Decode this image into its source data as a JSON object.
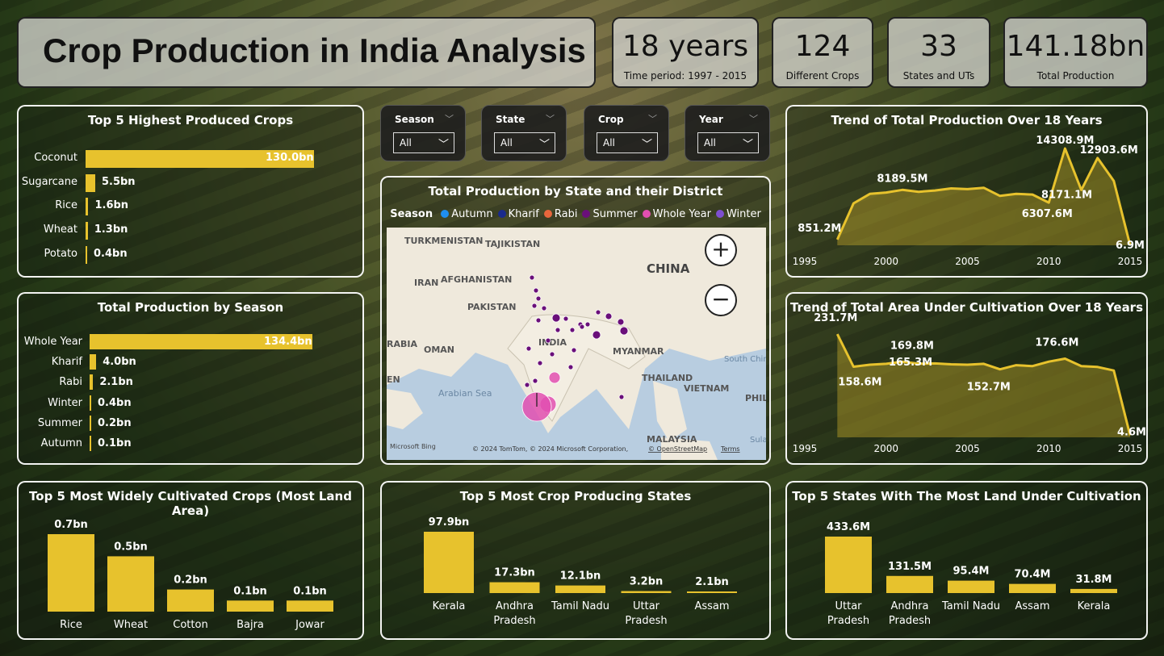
{
  "header": {
    "title": "Crop Production in India Analysis",
    "kpis": [
      {
        "value": "18 years",
        "label": "Time period: 1997 - 2015"
      },
      {
        "value": "124",
        "label": "Different Crops"
      },
      {
        "value": "33",
        "label": "States and UTs"
      },
      {
        "value": "141.18bn",
        "label": "Total Production"
      }
    ]
  },
  "filters": [
    {
      "label": "Season",
      "value": "All"
    },
    {
      "label": "State",
      "value": "All"
    },
    {
      "label": "Crop",
      "value": "All"
    },
    {
      "label": "Year",
      "value": "All"
    }
  ],
  "map_panel": {
    "title": "Total Production by State and their District",
    "legend_title": "Season",
    "legend": [
      {
        "name": "Autumn",
        "color": "#1f8ff0"
      },
      {
        "name": "Kharif",
        "color": "#1a2a8c"
      },
      {
        "name": "Rabi",
        "color": "#e8663c"
      },
      {
        "name": "Summer",
        "color": "#6a0f7a"
      },
      {
        "name": "Whole Year",
        "color": "#e24fb0"
      },
      {
        "name": "Winter",
        "color": "#7e4fd0"
      }
    ],
    "labels": {
      "turkmenistan": "TURKMENISTAN",
      "tajikistan": "TAJIKISTAN",
      "china": "CHINA",
      "iran": "IRAN",
      "afghanistan": "AFGHANISTAN",
      "pakistan": "PAKISTAN",
      "india": "INDIA",
      "arabia": "RABIA",
      "oman": "OMAN",
      "myanmar": "MYANMAR",
      "south_china_sea": "South China Sea",
      "thailand": "THAILAND",
      "vietnam": "VIETNAM",
      "arabian_sea": "Arabian Sea",
      "yemen": "EN",
      "phil": "PHIL",
      "malaysia": "MALAYSIA",
      "sula": "Sula",
      "bing": "Microsoft Bing",
      "copyright": "© 2024 TomTom, © 2024 Microsoft Corporation,",
      "osm": "© OpenStreetMap",
      "terms": "Terms"
    }
  },
  "chart_data": [
    {
      "type": "bar",
      "orientation": "horizontal",
      "title": "Top 5 Highest Produced Crops",
      "categories": [
        "Coconut",
        "Sugarcane",
        "Rice",
        "Wheat",
        "Potato"
      ],
      "values": [
        130.0,
        5.5,
        1.6,
        1.3,
        0.4
      ],
      "labels": [
        "130.0bn",
        "5.5bn",
        "1.6bn",
        "1.3bn",
        "0.4bn"
      ],
      "unit": "bn"
    },
    {
      "type": "bar",
      "orientation": "horizontal",
      "title": "Total Production by Season",
      "categories": [
        "Whole Year",
        "Kharif",
        "Rabi",
        "Winter",
        "Summer",
        "Autumn"
      ],
      "values": [
        134.4,
        4.0,
        2.1,
        0.4,
        0.2,
        0.1
      ],
      "labels": [
        "134.4bn",
        "4.0bn",
        "2.1bn",
        "0.4bn",
        "0.2bn",
        "0.1bn"
      ],
      "unit": "bn"
    },
    {
      "type": "bar",
      "orientation": "vertical",
      "title": "Top 5 Most Widely Cultivated Crops (Most Land Area)",
      "categories": [
        "Rice",
        "Wheat",
        "Cotton",
        "Bajra",
        "Jowar"
      ],
      "values": [
        0.7,
        0.5,
        0.2,
        0.1,
        0.1
      ],
      "labels": [
        "0.7bn",
        "0.5bn",
        "0.2bn",
        "0.1bn",
        "0.1bn"
      ],
      "unit": "bn"
    },
    {
      "type": "bar",
      "orientation": "vertical",
      "title": "Top 5 Most Crop Producing States",
      "categories": [
        "Kerala",
        "Andhra Pradesh",
        "Tamil Nadu",
        "Uttar Pradesh",
        "Assam"
      ],
      "values": [
        97.9,
        17.3,
        12.1,
        3.2,
        2.1
      ],
      "labels": [
        "97.9bn",
        "17.3bn",
        "12.1bn",
        "3.2bn",
        "2.1bn"
      ],
      "unit": "bn"
    },
    {
      "type": "bar",
      "orientation": "vertical",
      "title": "Top 5 States With The Most Land Under Cultivation",
      "categories": [
        "Uttar Pradesh",
        "Andhra Pradesh",
        "Tamil Nadu",
        "Assam",
        "Kerala"
      ],
      "values": [
        433.6,
        131.5,
        95.4,
        70.4,
        31.8
      ],
      "labels": [
        "433.6M",
        "131.5M",
        "95.4M",
        "70.4M",
        "31.8M"
      ],
      "unit": "M"
    },
    {
      "type": "area",
      "title": "Trend of Total Production Over 18 Years",
      "x": [
        1997,
        1998,
        1999,
        2000,
        2001,
        2002,
        2003,
        2004,
        2005,
        2006,
        2007,
        2008,
        2009,
        2010,
        2011,
        2012,
        2013,
        2014,
        2015
      ],
      "y": [
        851.2,
        6200,
        7600,
        7800,
        8189.5,
        7900,
        8100,
        8400,
        8300,
        8500,
        7300,
        7600,
        7500,
        6307.6,
        14308.9,
        8171.1,
        12903.6,
        9500,
        6.9
      ],
      "annotations": [
        {
          "x": 1997,
          "label": "851.2M"
        },
        {
          "x": 2001,
          "label": "8189.5M"
        },
        {
          "x": 2010,
          "label": "6307.6M"
        },
        {
          "x": 2011,
          "label": "14308.9M"
        },
        {
          "x": 2012,
          "label": "8171.1M"
        },
        {
          "x": 2013,
          "label": "12903.6M"
        },
        {
          "x": 2015,
          "label": "6.9M"
        }
      ],
      "xticks": [
        "1995",
        "2000",
        "2005",
        "2010",
        "2015"
      ],
      "xlim": [
        1995,
        2015
      ],
      "ylim": [
        0,
        15500
      ]
    },
    {
      "type": "area",
      "title": "Trend of Total Area Under Cultivation Over 18 Years",
      "x": [
        1997,
        1998,
        1999,
        2000,
        2001,
        2002,
        2003,
        2004,
        2005,
        2006,
        2007,
        2008,
        2009,
        2010,
        2011,
        2012,
        2013,
        2014,
        2015
      ],
      "y": [
        231.7,
        158.6,
        163,
        165,
        169.8,
        165.3,
        166,
        164,
        163,
        165,
        152.7,
        162,
        160,
        170,
        176.6,
        160,
        158,
        150,
        4.6
      ],
      "annotations": [
        {
          "x": 1997,
          "label": "231.7M"
        },
        {
          "x": 1998,
          "label": "158.6M"
        },
        {
          "x": 2001,
          "label": "169.8M"
        },
        {
          "x": 2002,
          "label": "165.3M"
        },
        {
          "x": 2007,
          "label": "152.7M"
        },
        {
          "x": 2011,
          "label": "176.6M"
        },
        {
          "x": 2015,
          "label": "4.6M"
        }
      ],
      "xticks": [
        "1995",
        "2000",
        "2005",
        "2010",
        "2015"
      ],
      "xlim": [
        1995,
        2015
      ],
      "ylim": [
        0,
        250
      ]
    }
  ]
}
